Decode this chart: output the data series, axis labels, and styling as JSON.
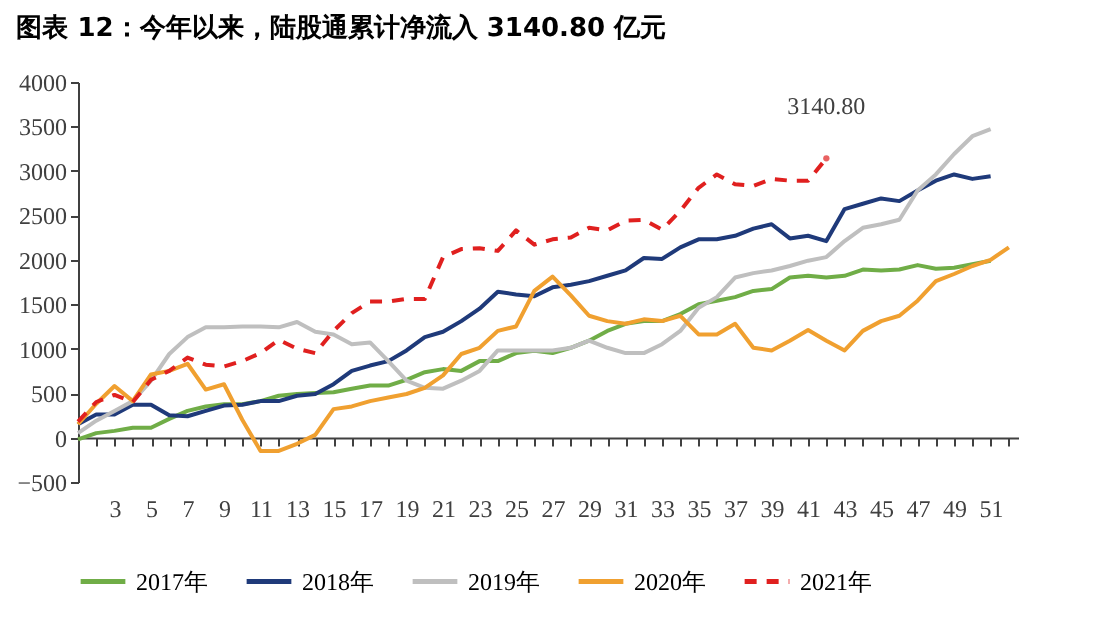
{
  "chart_data": {
    "type": "line",
    "title": "图表 12：今年以来，陆股通累计净流入 3140.80 亿元",
    "x": [
      1,
      2,
      3,
      4,
      5,
      6,
      7,
      8,
      9,
      10,
      11,
      12,
      13,
      14,
      15,
      16,
      17,
      18,
      19,
      20,
      21,
      22,
      23,
      24,
      25,
      26,
      27,
      28,
      29,
      30,
      31,
      32,
      33,
      34,
      35,
      36,
      37,
      38,
      39,
      40,
      41,
      42,
      43,
      44,
      45,
      46,
      47,
      48,
      49,
      50,
      51,
      52
    ],
    "xlim": [
      1,
      52.5
    ],
    "xticks": [
      {
        "value": 2,
        "label": null
      },
      3,
      {
        "value": 4,
        "label": null
      },
      5,
      {
        "value": 6,
        "label": null
      },
      7,
      {
        "value": 8,
        "label": null
      },
      9,
      {
        "value": 10,
        "label": null
      },
      11,
      {
        "value": 12,
        "label": null
      },
      13,
      {
        "value": 14,
        "label": null
      },
      15,
      {
        "value": 16,
        "label": null
      },
      17,
      {
        "value": 18,
        "label": null
      },
      19,
      {
        "value": 20,
        "label": null
      },
      21,
      {
        "value": 22,
        "label": null
      },
      23,
      {
        "value": 24,
        "label": null
      },
      25,
      {
        "value": 26,
        "label": null
      },
      27,
      {
        "value": 28,
        "label": null
      },
      29,
      {
        "value": 30,
        "label": null
      },
      31,
      {
        "value": 32,
        "label": null
      },
      33,
      {
        "value": 34,
        "label": null
      },
      35,
      {
        "value": 36,
        "label": null
      },
      37,
      {
        "value": 38,
        "label": null
      },
      39,
      {
        "value": 40,
        "label": null
      },
      41,
      {
        "value": 42,
        "label": null
      },
      43,
      {
        "value": 44,
        "label": null
      },
      45,
      {
        "value": 46,
        "label": null
      },
      47,
      {
        "value": 48,
        "label": null
      },
      49,
      {
        "value": 50,
        "label": null
      },
      51,
      {
        "value": 52,
        "label": null
      }
    ],
    "ylim": [
      -500,
      4000
    ],
    "yticks": [
      -500,
      0,
      500,
      1000,
      1500,
      2000,
      2500,
      3000,
      3500,
      4000
    ],
    "grid": false,
    "legend": "bottom",
    "series": [
      {
        "name": "2017年",
        "color": "#70ad47",
        "values": [
          -20,
          50,
          75,
          110,
          110,
          210,
          300,
          350,
          375,
          375,
          410,
          470,
          490,
          500,
          510,
          550,
          585,
          585,
          650,
          735,
          770,
          750,
          860,
          860,
          950,
          975,
          950,
          1010,
          1090,
          1200,
          1280,
          1310,
          1310,
          1390,
          1500,
          1540,
          1580,
          1650,
          1670,
          1800,
          1820,
          1800,
          1820,
          1890,
          1880,
          1890,
          1940,
          1900,
          1910,
          1950,
          1990,
          null
        ]
      },
      {
        "name": "2018年",
        "color": "#1f3a7a",
        "values": [
          150,
          260,
          260,
          370,
          370,
          250,
          240,
          300,
          360,
          370,
          410,
          410,
          470,
          490,
          600,
          750,
          810,
          860,
          980,
          1130,
          1190,
          1310,
          1450,
          1640,
          1610,
          1590,
          1690,
          1720,
          1760,
          1820,
          1880,
          2020,
          2010,
          2140,
          2230,
          2230,
          2270,
          2350,
          2400,
          2240,
          2270,
          2210,
          2570,
          2630,
          2690,
          2660,
          2780,
          2890,
          2960,
          2910,
          2940,
          null
        ]
      },
      {
        "name": "2019年",
        "color": "#bfbfbf",
        "values": [
          50,
          190,
          300,
          410,
          640,
          940,
          1130,
          1240,
          1240,
          1250,
          1250,
          1240,
          1300,
          1190,
          1160,
          1050,
          1070,
          860,
          640,
          560,
          550,
          640,
          750,
          980,
          980,
          980,
          980,
          1010,
          1090,
          1010,
          950,
          950,
          1050,
          1200,
          1460,
          1580,
          1800,
          1850,
          1880,
          1930,
          1990,
          2030,
          2210,
          2360,
          2400,
          2450,
          2780,
          2960,
          3190,
          3390,
          3470,
          null
        ]
      },
      {
        "name": "2020年",
        "color": "#f0a030",
        "values": [
          150,
          380,
          580,
          410,
          710,
          750,
          830,
          540,
          600,
          200,
          -150,
          -150,
          -70,
          30,
          320,
          350,
          410,
          450,
          490,
          560,
          700,
          940,
          1010,
          1200,
          1250,
          1650,
          1810,
          1600,
          1370,
          1310,
          1280,
          1330,
          1310,
          1370,
          1160,
          1160,
          1280,
          1010,
          980,
          1090,
          1210,
          1090,
          980,
          1200,
          1310,
          1370,
          1540,
          1760,
          1840,
          1930,
          2000,
          2140
        ]
      },
      {
        "name": "2021年",
        "color": "#e0201f",
        "line_style": "dashed",
        "values": [
          180,
          400,
          480,
          400,
          650,
          750,
          900,
          820,
          800,
          860,
          950,
          1100,
          1000,
          950,
          1200,
          1400,
          1530,
          1530,
          1560,
          1560,
          2030,
          2120,
          2130,
          2100,
          2330,
          2170,
          2230,
          2250,
          2360,
          2330,
          2440,
          2450,
          2340,
          2550,
          2810,
          2960,
          2850,
          2830,
          2910,
          2890,
          2890,
          3140.8,
          null,
          null,
          null,
          null,
          null,
          null,
          null,
          null,
          null,
          null
        ]
      }
    ],
    "annotations": [
      {
        "text": "3140.80",
        "x": 42,
        "y": 3140.8
      }
    ]
  }
}
